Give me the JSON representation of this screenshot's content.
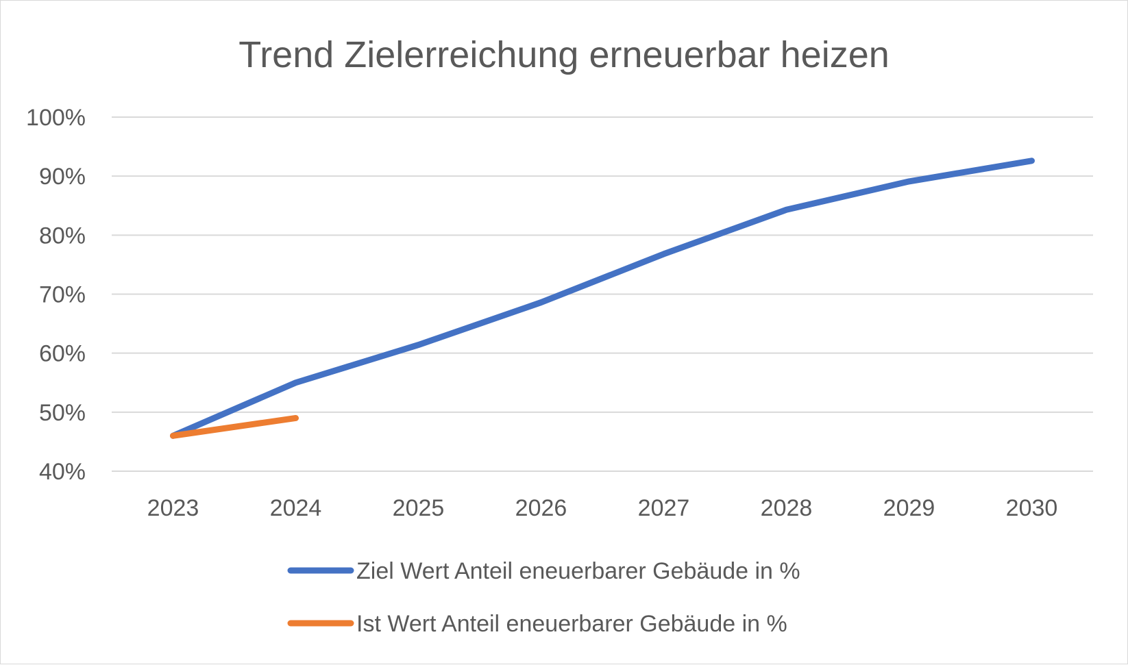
{
  "chart_data": {
    "type": "line",
    "title": "Trend Zielerreichung erneuerbar heizen",
    "categories": [
      "2023",
      "2024",
      "2025",
      "2026",
      "2027",
      "2028",
      "2029",
      "2030"
    ],
    "yticks": [
      "40%",
      "50%",
      "60%",
      "70%",
      "80%",
      "90%",
      "100%"
    ],
    "ylim": [
      0.4,
      1.0
    ],
    "grid": true,
    "legend_position": "bottom",
    "series": [
      {
        "name": "Ziel Wert Anteil eneuerbarer Gebäude in %",
        "color": "#4472c4",
        "values": [
          0.46,
          0.55,
          0.614,
          0.686,
          0.768,
          0.843,
          0.891,
          0.926
        ]
      },
      {
        "name": "Ist Wert Anteil eneuerbarer Gebäude in %",
        "color": "#ed7d31",
        "values": [
          0.46,
          0.49,
          null,
          null,
          null,
          null,
          null,
          null
        ]
      }
    ]
  }
}
